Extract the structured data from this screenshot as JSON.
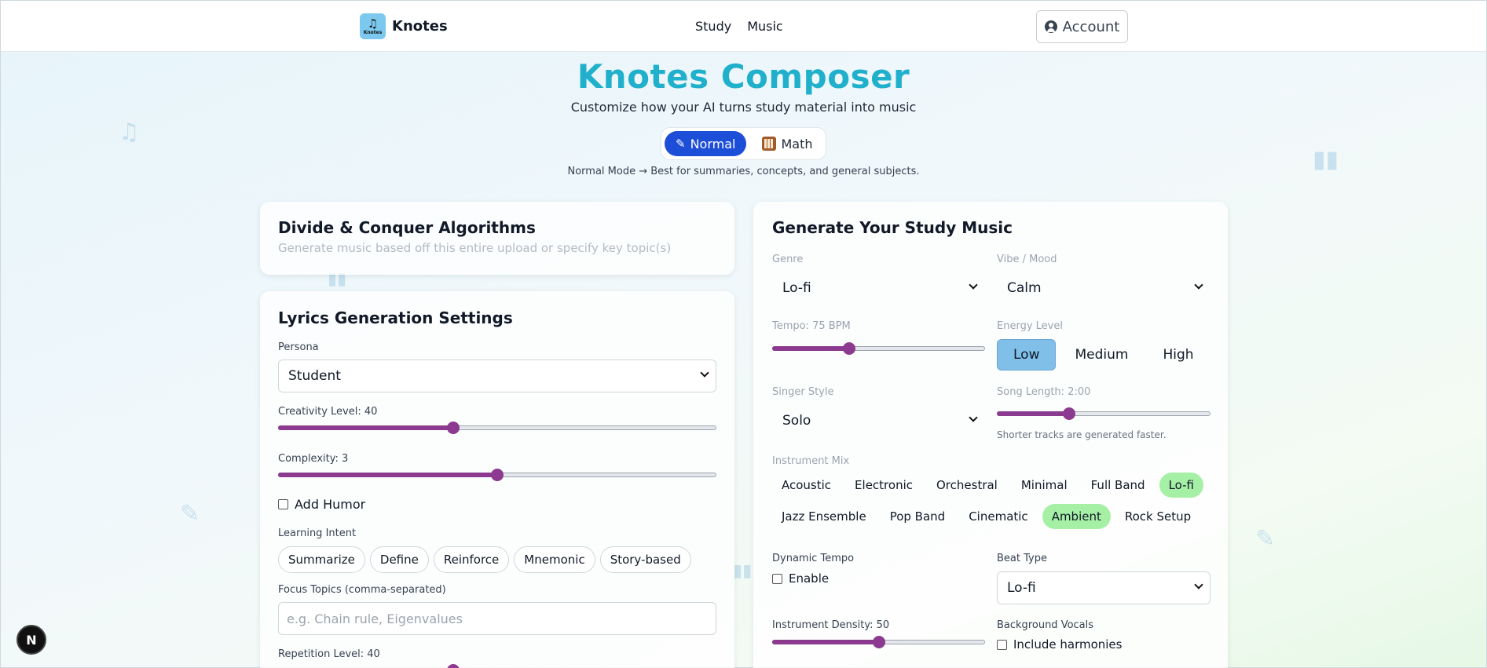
{
  "header": {
    "brand": "Knotes",
    "logo_caption": "Knotes",
    "nav": [
      "Study",
      "Music"
    ],
    "account_label": "Account"
  },
  "hero": {
    "title": "Knotes Composer",
    "subtitle": "Customize how your AI turns study material into music",
    "modes": [
      "Normal",
      "Math"
    ],
    "active_mode": "Normal",
    "mode_description": "Normal Mode → Best for summaries, concepts, and general subjects."
  },
  "topic_card": {
    "title": "Divide & Conquer Algorithms",
    "placeholder": "Generate music based off this entire upload or specify key topic(s)"
  },
  "lyrics": {
    "title": "Lyrics Generation Settings",
    "persona_label": "Persona",
    "persona_value": "Student",
    "creativity_label": "Creativity Level: 40",
    "creativity_value": 40,
    "complexity_label": "Complexity: 3",
    "complexity_value": 0.5,
    "humor_label": "Add Humor",
    "intent_label": "Learning Intent",
    "intents": [
      "Summarize",
      "Define",
      "Reinforce",
      "Mnemonic",
      "Story-based"
    ],
    "focus_label": "Focus Topics (comma-separated)",
    "focus_placeholder": "e.g. Chain rule, Eigenvalues",
    "repetition_label": "Repetition Level: 40",
    "repetition_value": 40
  },
  "music": {
    "title": "Generate Your Study Music",
    "genre_label": "Genre",
    "genre_value": "Lo-fi",
    "vibe_label": "Vibe / Mood",
    "vibe_value": "Calm",
    "tempo_label": "Tempo: 75 BPM",
    "tempo_fraction": 0.36,
    "energy_label": "Energy Level",
    "energy_options": [
      "Low",
      "Medium",
      "High"
    ],
    "energy_selected": "Low",
    "singer_label": "Singer Style",
    "singer_value": "Solo",
    "length_label": "Song Length: 2:00",
    "length_fraction": 0.34,
    "length_note": "Shorter tracks are generated faster.",
    "instrument_label": "Instrument Mix",
    "instruments_row1": [
      "Acoustic",
      "Electronic",
      "Orchestral",
      "Minimal",
      "Full Band",
      "Lo-fi"
    ],
    "instruments_row2": [
      "Jazz Ensemble",
      "Pop Band",
      "Cinematic",
      "Ambient",
      "Rock Setup"
    ],
    "instruments_selected": [
      "Lo-fi",
      "Ambient"
    ],
    "dynamic_label": "Dynamic Tempo",
    "dynamic_checkbox": "Enable",
    "beat_label": "Beat Type",
    "beat_value": "Lo-fi",
    "density_label": "Instrument Density: 50",
    "density_value": 50,
    "vocals_label": "Background Vocals",
    "vocals_checkbox": "Include harmonies"
  },
  "badge": "N",
  "colors": {
    "title_accent": "#21b0cc",
    "mode_active": "#1d4ed8",
    "slider": "#8b3a8f",
    "chip_selected": "#a6f0a6",
    "energy_selected": "#7fbfe8"
  }
}
